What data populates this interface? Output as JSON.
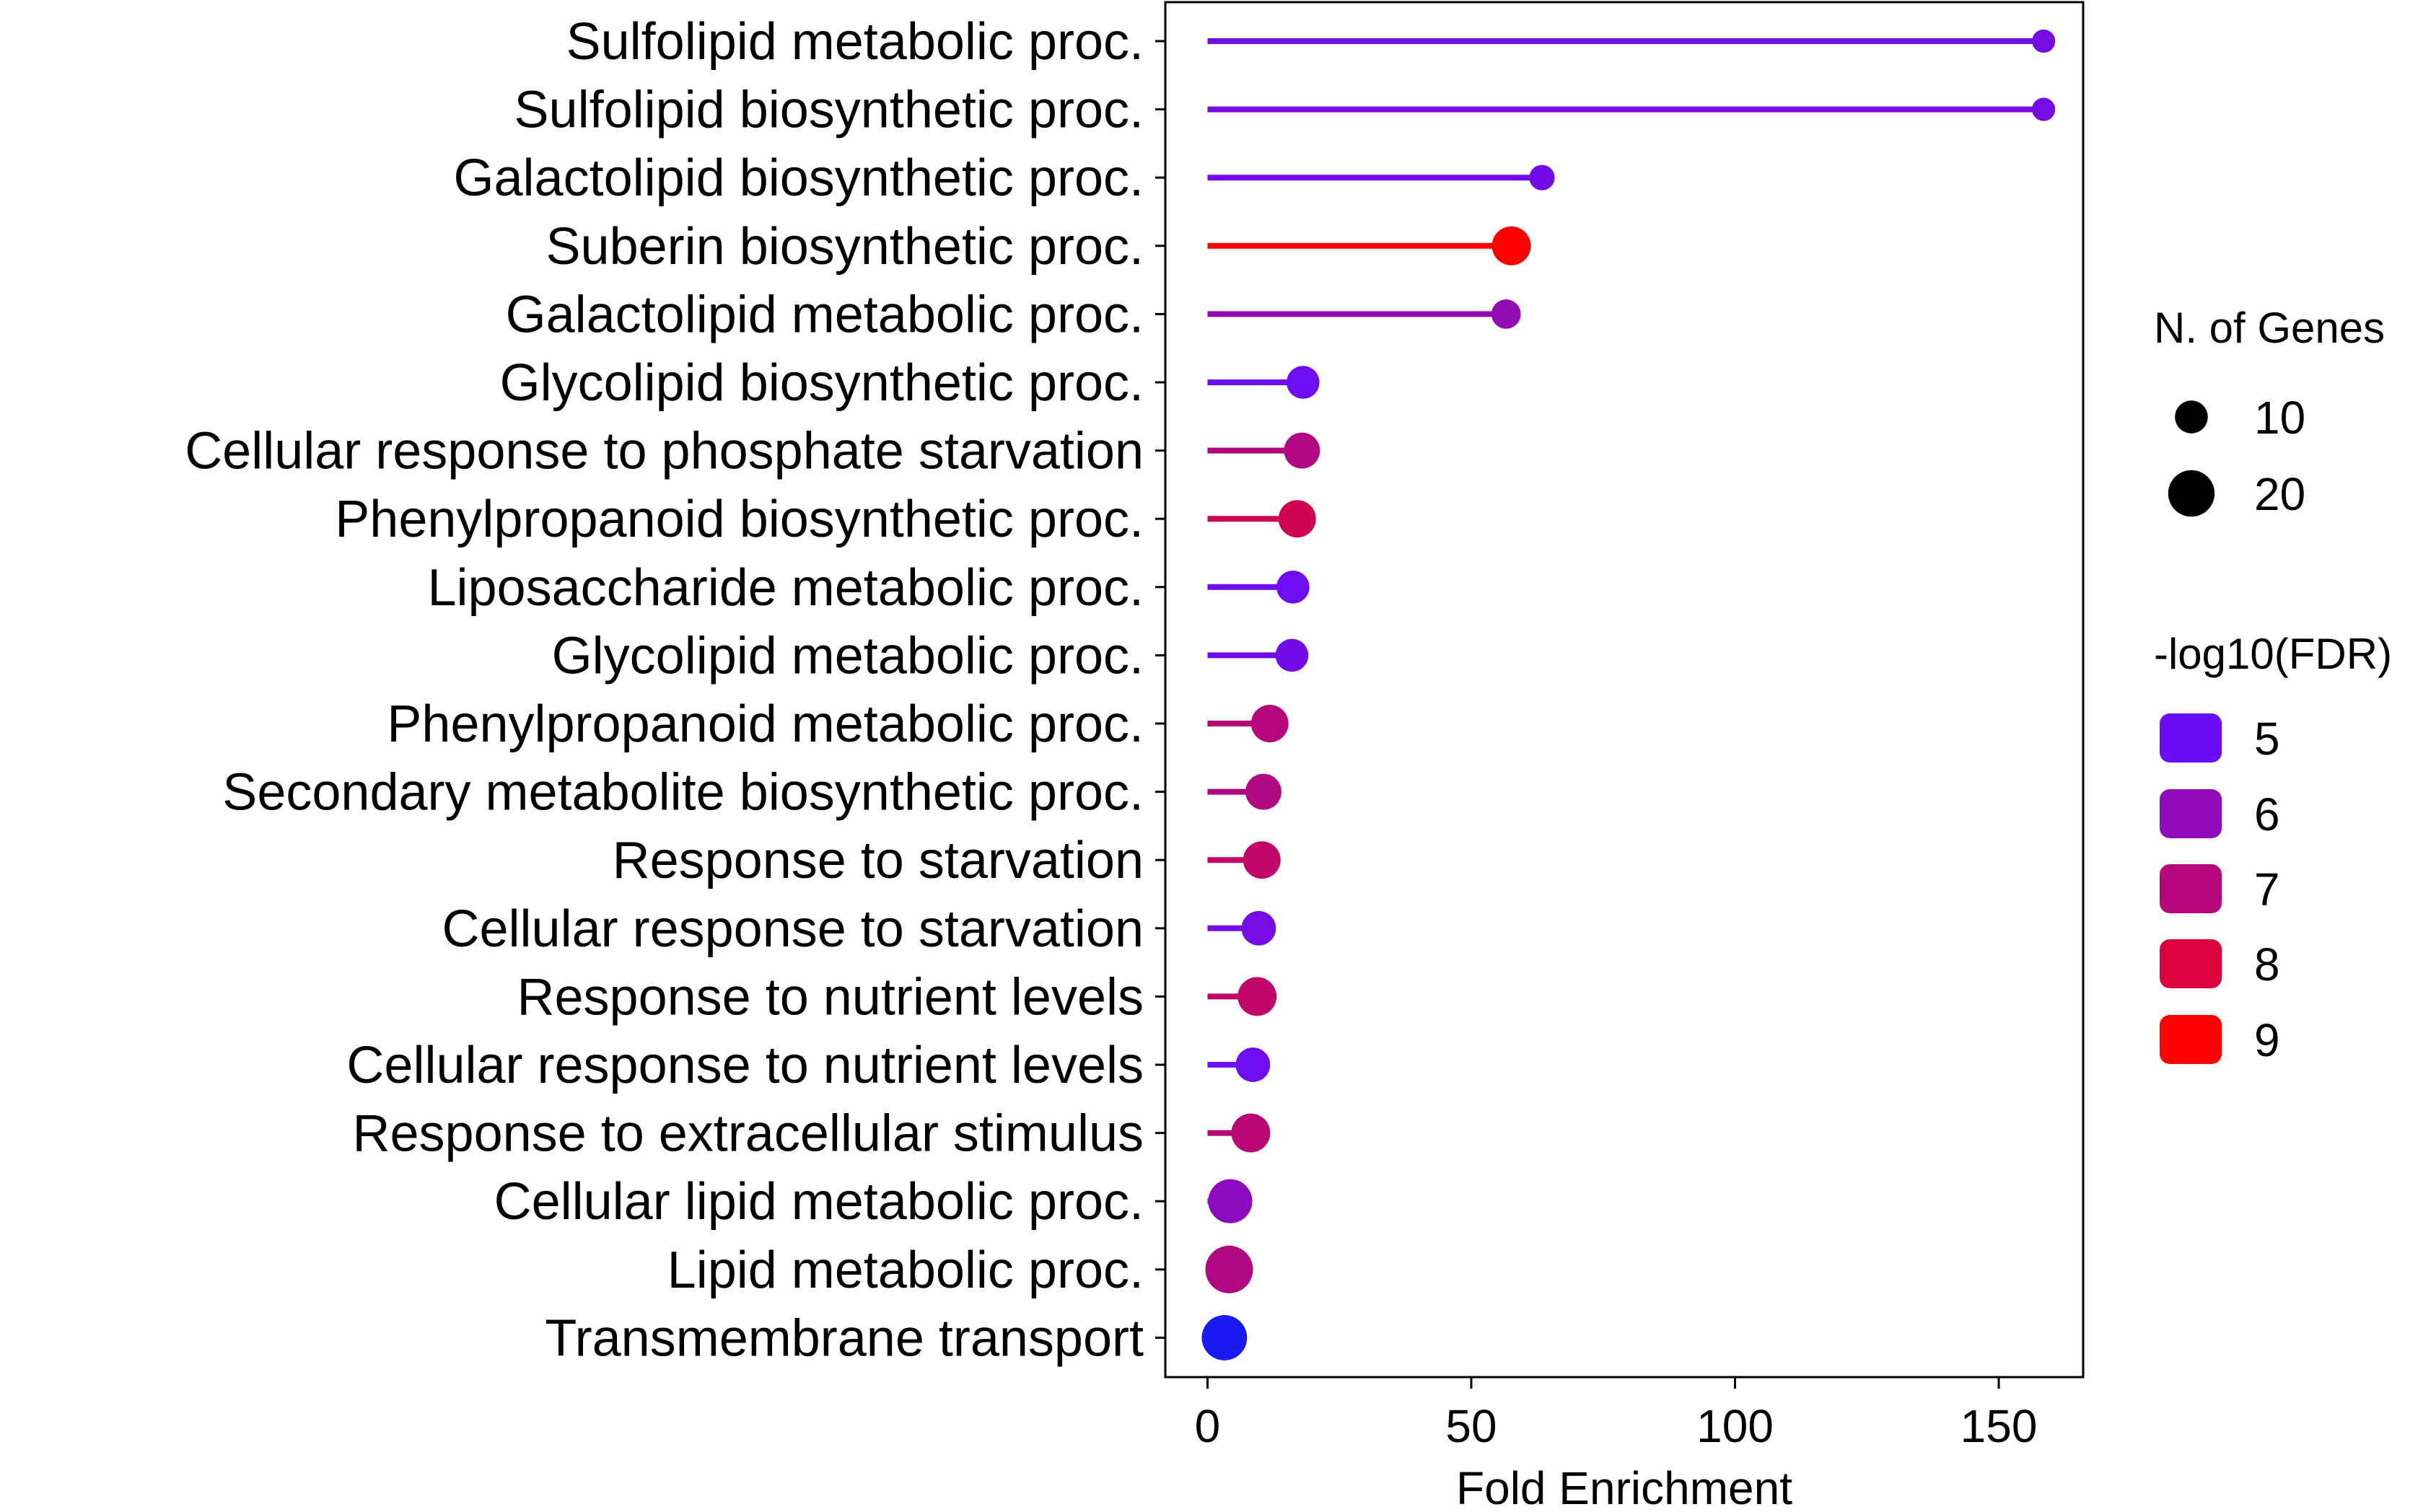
{
  "chart_data": {
    "type": "lollipop",
    "title": "",
    "xlabel": "Fold Enrichment",
    "ylabel": "",
    "xlim": [
      -8,
      166
    ],
    "xticks": [
      0,
      50,
      100,
      150
    ],
    "grid": false,
    "categories": [
      "Sulfolipid metabolic proc.",
      "Sulfolipid biosynthetic proc.",
      "Galactolipid biosynthetic proc.",
      "Suberin biosynthetic proc.",
      "Galactolipid metabolic proc.",
      "Glycolipid biosynthetic proc.",
      "Cellular response to phosphate starvation",
      "Phenylpropanoid biosynthetic proc.",
      "Liposaccharide metabolic proc.",
      "Glycolipid metabolic proc.",
      "Phenylpropanoid metabolic proc.",
      "Secondary metabolite biosynthetic proc.",
      "Response to starvation",
      "Cellular response to starvation",
      "Response to nutrient levels",
      "Cellular response to nutrient levels",
      "Response to extracellular stimulus",
      "Cellular lipid metabolic proc.",
      "Lipid metabolic proc.",
      "Transmembrane transport"
    ],
    "values": [
      158.5,
      158.5,
      63.4,
      57.6,
      56.6,
      18.1,
      17.9,
      17.0,
      16.2,
      16.0,
      11.8,
      10.6,
      10.3,
      9.7,
      9.4,
      8.6,
      8.2,
      4.3,
      4.1,
      3.2
    ],
    "n_genes": [
      5,
      5,
      6,
      14,
      8,
      10,
      12,
      13,
      10,
      10,
      13,
      12,
      13,
      11,
      14,
      11,
      14,
      18,
      21,
      19
    ],
    "neg_log10_fdr": [
      5.3,
      5.3,
      5.2,
      9.0,
      6.1,
      5.1,
      6.9,
      7.7,
      5.1,
      5.2,
      7.0,
      6.9,
      7.3,
      5.3,
      7.3,
      5.1,
      7.1,
      5.9,
      6.9,
      3.8
    ],
    "color_scale": {
      "min_value": 5,
      "max_value": 9,
      "min_color": "#6a0df5",
      "max_color": "#ff0000",
      "below_min_color": "#1a1af0"
    },
    "legend": {
      "position": "right",
      "size_title": "N. of Genes",
      "size_levels": [
        10,
        20
      ],
      "size_labels": [
        "10",
        "20"
      ],
      "color_title": "-log10(FDR)",
      "color_levels": [
        5,
        6,
        7,
        8,
        9
      ],
      "color_labels": [
        "5",
        "6",
        "7",
        "8",
        "9"
      ]
    }
  }
}
